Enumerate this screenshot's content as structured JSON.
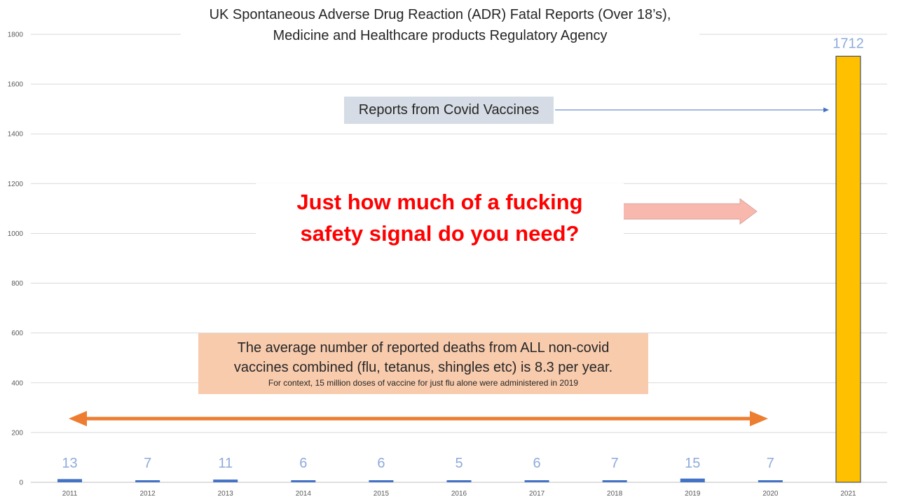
{
  "chart_data": {
    "type": "bar",
    "title": "UK Spontaneous Adverse Drug Reaction (ADR) Fatal Reports (Over 18’s),",
    "subtitle": "Medicine and Healthcare products Regulatory Agency",
    "categories": [
      "2011",
      "2012",
      "2013",
      "2014",
      "2015",
      "2016",
      "2017",
      "2018",
      "2019",
      "2020",
      "2021"
    ],
    "values": [
      13,
      7,
      11,
      6,
      6,
      5,
      6,
      7,
      15,
      7,
      1712
    ],
    "data_labels": [
      "13",
      "7",
      "11",
      "6",
      "6",
      "5",
      "6",
      "7",
      "15",
      "7",
      "1712"
    ],
    "bar_colors": [
      "#4472c4",
      "#4472c4",
      "#4472c4",
      "#4472c4",
      "#4472c4",
      "#4472c4",
      "#4472c4",
      "#4472c4",
      "#4472c4",
      "#4472c4",
      "#ffc000"
    ],
    "label_color": "#8faadc",
    "ylim": [
      0,
      1800
    ],
    "yticks": [
      0,
      200,
      400,
      600,
      800,
      1000,
      1200,
      1400,
      1600,
      1800
    ],
    "xlabel": "",
    "ylabel": "",
    "grid": true,
    "annotations": {
      "covid_callout": "Reports from Covid Vaccines",
      "headline_line1": "Just how much of a fucking",
      "headline_line2": "safety signal do you need?",
      "average_line1": "The average number of reported deaths from ALL non-covid",
      "average_line2": "vaccines combined (flu, tetanus, shingles etc) is 8.3 per year.",
      "context_note": "For context, 15 million doses of vaccine for just flu alone were administered in 2019"
    },
    "colors": {
      "headline": "#ff0000",
      "headline_arrow": "#f8b8ae",
      "span_arrow": "#ed7d31",
      "average_box": "#f8cbad",
      "callout_box": "#d6dce5",
      "callout_arrow": "#4472c4"
    }
  }
}
